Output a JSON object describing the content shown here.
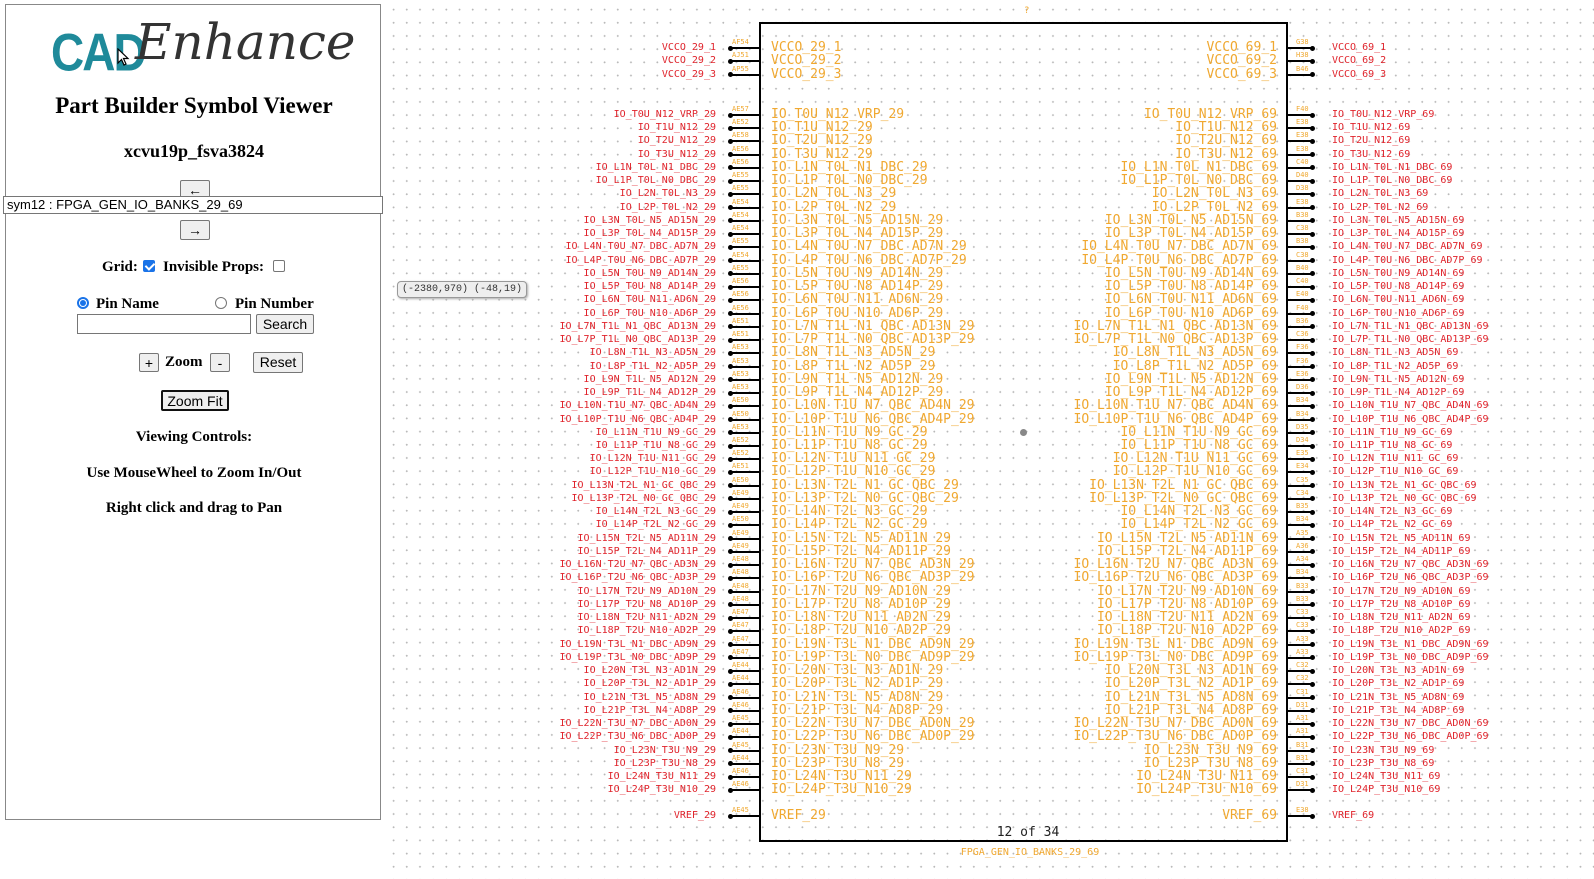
{
  "app": {
    "logo_cad": "CAD",
    "logo_enhance": "Enhance",
    "title": "Part Builder Symbol Viewer",
    "part_name": "xcvu19p_fsva3824"
  },
  "nav": {
    "prev_label": "←",
    "next_label": "→",
    "symbol_select_value": "sym12 : FPGA_GEN_IO_BANKS_29_69"
  },
  "options": {
    "grid_label": "Grid:",
    "grid_checked": true,
    "invisible_props_label": "Invisible Props:",
    "invisible_props_checked": false
  },
  "search": {
    "pin_name_label": "Pin Name",
    "pin_number_label": "Pin Number",
    "mode": "pin_name",
    "input_value": "",
    "button_label": "Search"
  },
  "zoom": {
    "plus_label": "+",
    "label": "Zoom",
    "minus_label": "-",
    "reset_label": "Reset",
    "fit_label": "Zoom Fit"
  },
  "help": {
    "heading": "Viewing Controls:",
    "line1": "Use MouseWheel to Zoom In/Out",
    "line2": "Right click and drag to Pan"
  },
  "canvas": {
    "coord_readout": "(-2380,970) (-48,19)",
    "page_indicator": "12 of 34",
    "symbol_caption": "FPGA_GEN_IO_BANKS_29_69",
    "top_mark": "?"
  },
  "colors": {
    "pin_inner": "#f0a830",
    "net_label": "#e0242c",
    "body_border": "#000000",
    "logo_accent": "#1f8a9a"
  },
  "pins_left": {
    "power": [
      "VCCO_29_1",
      "VCCO_29_2",
      "VCCO_29_3"
    ],
    "io": [
      "IO_T0U_N12_VRP_29",
      "IO_T1U_N12_29",
      "IO_T2U_N12_29",
      "IO_T3U_N12_29",
      "IO_L1N_T0L_N1_DBC_29",
      "IO_L1P_T0L_N0_DBC_29",
      "IO_L2N_T0L_N3_29",
      "IO_L2P_T0L_N2_29",
      "IO_L3N_T0L_N5_AD15N_29",
      "IO_L3P_T0L_N4_AD15P_29",
      "IO_L4N_T0U_N7_DBC_AD7N_29",
      "IO_L4P_T0U_N6_DBC_AD7P_29",
      "IO_L5N_T0U_N9_AD14N_29",
      "IO_L5P_T0U_N8_AD14P_29",
      "IO_L6N_T0U_N11_AD6N_29",
      "IO_L6P_T0U_N10_AD6P_29",
      "IO_L7N_T1L_N1_QBC_AD13N_29",
      "IO_L7P_T1L_N0_QBC_AD13P_29",
      "IO_L8N_T1L_N3_AD5N_29",
      "IO_L8P_T1L_N2_AD5P_29",
      "IO_L9N_T1L_N5_AD12N_29",
      "IO_L9P_T1L_N4_AD12P_29",
      "IO_L10N_T1U_N7_QBC_AD4N_29",
      "IO_L10P_T1U_N6_QBC_AD4P_29",
      "IO_L11N_T1U_N9_GC_29",
      "IO_L11P_T1U_N8_GC_29",
      "IO_L12N_T1U_N11_GC_29",
      "IO_L12P_T1U_N10_GC_29",
      "IO_L13N_T2L_N1_GC_QBC_29",
      "IO_L13P_T2L_N0_GC_QBC_29",
      "IO_L14N_T2L_N3_GC_29",
      "IO_L14P_T2L_N2_GC_29",
      "IO_L15N_T2L_N5_AD11N_29",
      "IO_L15P_T2L_N4_AD11P_29",
      "IO_L16N_T2U_N7_QBC_AD3N_29",
      "IO_L16P_T2U_N6_QBC_AD3P_29",
      "IO_L17N_T2U_N9_AD10N_29",
      "IO_L17P_T2U_N8_AD10P_29",
      "IO_L18N_T2U_N11_AD2N_29",
      "IO_L18P_T2U_N10_AD2P_29",
      "IO_L19N_T3L_N1_DBC_AD9N_29",
      "IO_L19P_T3L_N0_DBC_AD9P_29",
      "IO_L20N_T3L_N3_AD1N_29",
      "IO_L20P_T3L_N2_AD1P_29",
      "IO_L21N_T3L_N5_AD8N_29",
      "IO_L21P_T3L_N4_AD8P_29",
      "IO_L22N_T3U_N7_DBC_AD0N_29",
      "IO_L22P_T3U_N6_DBC_AD0P_29",
      "IO_L23N_T3U_N9_29",
      "IO_L23P_T3U_N8_29",
      "IO_L24N_T3U_N11_29",
      "IO_L24P_T3U_N10_29"
    ],
    "vref": "VREF_29",
    "numbers_power": [
      "AF54",
      "AJ51",
      "AP55"
    ],
    "numbers_io": [
      "AE57",
      "AE52",
      "AE58",
      "AE56",
      "AE56",
      "AE55",
      "AE55",
      "AE54",
      "AE54",
      "AE54",
      "AE55",
      "AE54",
      "AE55",
      "AE56",
      "AE56",
      "AE56",
      "AE51",
      "AE51",
      "AE53",
      "AE53",
      "AE53",
      "AE53",
      "AE50",
      "AE50",
      "AE53",
      "AE52",
      "AE52",
      "AE51",
      "AE50",
      "AE49",
      "AE49",
      "AE50",
      "AE49",
      "AE49",
      "AE48",
      "AE48",
      "AE48",
      "AE48",
      "AE47",
      "AE47",
      "AE47",
      "AE47",
      "AE44",
      "AE44",
      "AE46",
      "AE46",
      "AE45",
      "AE44",
      "AE45",
      "AE44",
      "AE46",
      "AE46"
    ],
    "number_vref": "AE45"
  },
  "pins_right": {
    "power": [
      "VCCO_69_1",
      "VCCO_69_2",
      "VCCO_69_3"
    ],
    "io": [
      "IO_T0U_N12_VRP_69",
      "IO_T1U_N12_69",
      "IO_T2U_N12_69",
      "IO_T3U_N12_69",
      "IO_L1N_T0L_N1_DBC_69",
      "IO_L1P_T0L_N0_DBC_69",
      "IO_L2N_T0L_N3_69",
      "IO_L2P_T0L_N2_69",
      "IO_L3N_T0L_N5_AD15N_69",
      "IO_L3P_T0L_N4_AD15P_69",
      "IO_L4N_T0U_N7_DBC_AD7N_69",
      "IO_L4P_T0U_N6_DBC_AD7P_69",
      "IO_L5N_T0U_N9_AD14N_69",
      "IO_L5P_T0U_N8_AD14P_69",
      "IO_L6N_T0U_N11_AD6N_69",
      "IO_L6P_T0U_N10_AD6P_69",
      "IO_L7N_T1L_N1_QBC_AD13N_69",
      "IO_L7P_T1L_N0_QBC_AD13P_69",
      "IO_L8N_T1L_N3_AD5N_69",
      "IO_L8P_T1L_N2_AD5P_69",
      "IO_L9N_T1L_N5_AD12N_69",
      "IO_L9P_T1L_N4_AD12P_69",
      "IO_L10N_T1U_N7_QBC_AD4N_69",
      "IO_L10P_T1U_N6_QBC_AD4P_69",
      "IO_L11N_T1U_N9_GC_69",
      "IO_L11P_T1U_N8_GC_69",
      "IO_L12N_T1U_N11_GC_69",
      "IO_L12P_T1U_N10_GC_69",
      "IO_L13N_T2L_N1_GC_QBC_69",
      "IO_L13P_T2L_N0_GC_QBC_69",
      "IO_L14N_T2L_N3_GC_69",
      "IO_L14P_T2L_N2_GC_69",
      "IO_L15N_T2L_N5_AD11N_69",
      "IO_L15P_T2L_N4_AD11P_69",
      "IO_L16N_T2U_N7_QBC_AD3N_69",
      "IO_L16P_T2U_N6_QBC_AD3P_69",
      "IO_L17N_T2U_N9_AD10N_69",
      "IO_L17P_T2U_N8_AD10P_69",
      "IO_L18N_T2U_N11_AD2N_69",
      "IO_L18P_T2U_N10_AD2P_69",
      "IO_L19N_T3L_N1_DBC_AD9N_69",
      "IO_L19P_T3L_N0_DBC_AD9P_69",
      "IO_L20N_T3L_N3_AD1N_69",
      "IO_L20P_T3L_N2_AD1P_69",
      "IO_L21N_T3L_N5_AD8N_69",
      "IO_L21P_T3L_N4_AD8P_69",
      "IO_L22N_T3U_N7_DBC_AD0N_69",
      "IO_L22P_T3U_N6_DBC_AD0P_69",
      "IO_L23N_T3U_N9_69",
      "IO_L23P_T3U_N8_69",
      "IO_L24N_T3U_N11_69",
      "IO_L24P_T3U_N10_69"
    ],
    "vref": "VREF_69",
    "numbers_power": [
      "G38",
      "H38",
      "B46"
    ],
    "numbers_io": [
      "F40",
      "E38",
      "E38",
      "E38",
      "C40",
      "D40",
      "D38",
      "E38",
      "B38",
      "C38",
      "B38",
      "C38",
      "B40",
      "C40",
      "E40",
      "F40",
      "B36",
      "C36",
      "F36",
      "F36",
      "E36",
      "D36",
      "B34",
      "B34",
      "D35",
      "D34",
      "E35",
      "E34",
      "C35",
      "C34",
      "B35",
      "B34",
      "A35",
      "A36",
      "A34",
      "B34",
      "B33",
      "B33",
      "C33",
      "C33",
      "A33",
      "A33",
      "C32",
      "C32",
      "C31",
      "D31",
      "A31",
      "A31",
      "B31",
      "B31",
      "C31",
      "D31"
    ],
    "number_vref": "E38"
  }
}
